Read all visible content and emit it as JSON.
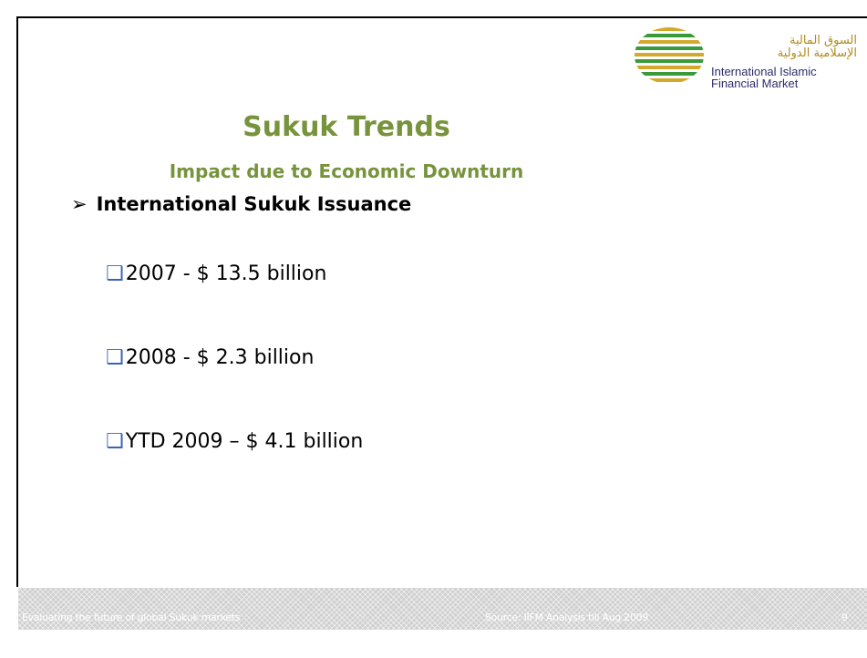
{
  "title": "Sukuk Trends",
  "subtitle": "Impact due to Economic Downturn",
  "logo": {
    "arabic": [
      "السوق المالية",
      "الإسلامية الدولية"
    ],
    "english": [
      "International Islamic",
      "Financial Market"
    ]
  },
  "bullet": "International Sukuk Issuance",
  "items": [
    "2007 - $ 13.5 billion",
    "2008 - $ 2.3 billion",
    "YTD 2009 – $ 4.1 billion"
  ],
  "footer": {
    "left": "Evaluating the future of global Sukuk markets",
    "source": "Source: IIFM Analysis till Aug 2009",
    "page": "9"
  }
}
